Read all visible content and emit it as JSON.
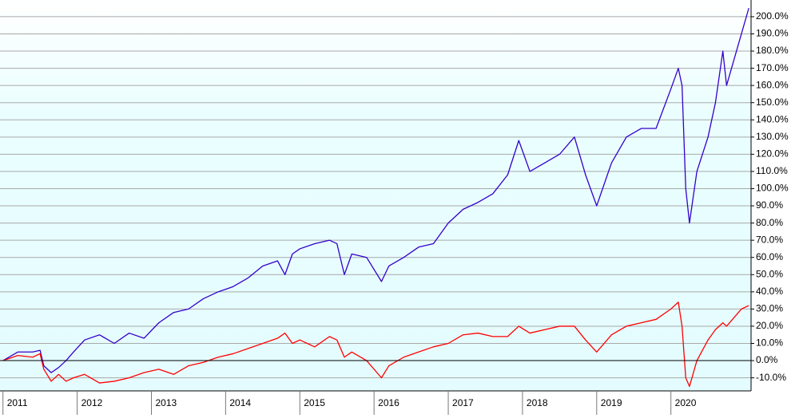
{
  "chart_data": {
    "type": "line",
    "x": [
      2011.0,
      2011.2,
      2011.4,
      2011.5,
      2011.55,
      2011.65,
      2011.75,
      2011.85,
      2011.95,
      2012.1,
      2012.3,
      2012.5,
      2012.7,
      2012.9,
      2013.1,
      2013.3,
      2013.5,
      2013.7,
      2013.9,
      2014.1,
      2014.3,
      2014.5,
      2014.7,
      2014.8,
      2014.9,
      2015.0,
      2015.2,
      2015.4,
      2015.5,
      2015.6,
      2015.7,
      2015.9,
      2016.1,
      2016.2,
      2016.4,
      2016.6,
      2016.8,
      2017.0,
      2017.2,
      2017.4,
      2017.6,
      2017.8,
      2017.95,
      2018.1,
      2018.3,
      2018.5,
      2018.7,
      2018.85,
      2019.0,
      2019.2,
      2019.4,
      2019.6,
      2019.8,
      2020.0,
      2020.1,
      2020.15,
      2020.2,
      2020.25,
      2020.35,
      2020.5,
      2020.6,
      2020.7,
      2020.75,
      2020.85,
      2020.95,
      2021.05
    ],
    "series": [
      {
        "color": "#3300cc",
        "values": [
          0,
          5,
          5,
          6,
          -3,
          -7,
          -4,
          0,
          5,
          12,
          15,
          10,
          16,
          13,
          22,
          28,
          30,
          36,
          40,
          43,
          48,
          55,
          58,
          50,
          62,
          65,
          68,
          70,
          68,
          50,
          62,
          60,
          46,
          55,
          60,
          66,
          68,
          80,
          88,
          92,
          97,
          108,
          128,
          110,
          115,
          120,
          130,
          108,
          90,
          115,
          130,
          135,
          135,
          158,
          170,
          160,
          100,
          80,
          110,
          130,
          150,
          180,
          160,
          175,
          190,
          205
        ]
      },
      {
        "color": "#ff0000",
        "values": [
          0,
          3,
          2,
          4,
          -5,
          -12,
          -8,
          -12,
          -10,
          -8,
          -13,
          -12,
          -10,
          -7,
          -5,
          -8,
          -3,
          -1,
          2,
          4,
          7,
          10,
          13,
          16,
          10,
          12,
          8,
          14,
          12,
          2,
          5,
          0,
          -10,
          -3,
          2,
          5,
          8,
          10,
          15,
          16,
          14,
          14,
          20,
          16,
          18,
          20,
          20,
          12,
          5,
          15,
          20,
          22,
          24,
          30,
          34,
          20,
          -10,
          -15,
          0,
          12,
          18,
          22,
          20,
          25,
          30,
          32
        ]
      }
    ],
    "xlim": [
      2010.96,
      2021.08
    ],
    "xticks": [
      2011,
      2012,
      2013,
      2014,
      2015,
      2016,
      2017,
      2018,
      2019,
      2020
    ],
    "ylim": [
      -17.6,
      209.7
    ],
    "yticks": [
      {
        "value": -10,
        "label": "-10.0%"
      },
      {
        "value": 0,
        "label": "0.0%"
      },
      {
        "value": 10,
        "label": "10.0%"
      },
      {
        "value": 20,
        "label": "20.0%"
      },
      {
        "value": 30,
        "label": "30.0%"
      },
      {
        "value": 40,
        "label": "40.0%"
      },
      {
        "value": 50,
        "label": "50.0%"
      },
      {
        "value": 60,
        "label": "60.0%"
      },
      {
        "value": 70,
        "label": "70.0%"
      },
      {
        "value": 80,
        "label": "80.0%"
      },
      {
        "value": 90,
        "label": "90.0%"
      },
      {
        "value": 100,
        "label": "100.0%"
      },
      {
        "value": 110,
        "label": "110.0%"
      },
      {
        "value": 120,
        "label": "120.0%"
      },
      {
        "value": 130,
        "label": "130.0%"
      },
      {
        "value": 140,
        "label": "140.0%"
      },
      {
        "value": 150,
        "label": "150.0%"
      },
      {
        "value": 160,
        "label": "160.0%"
      },
      {
        "value": 170,
        "label": "170.0%"
      },
      {
        "value": 180,
        "label": "180.0%"
      },
      {
        "value": 190,
        "label": "190.0%"
      },
      {
        "value": 200,
        "label": "200.0%"
      }
    ],
    "grid": true
  }
}
